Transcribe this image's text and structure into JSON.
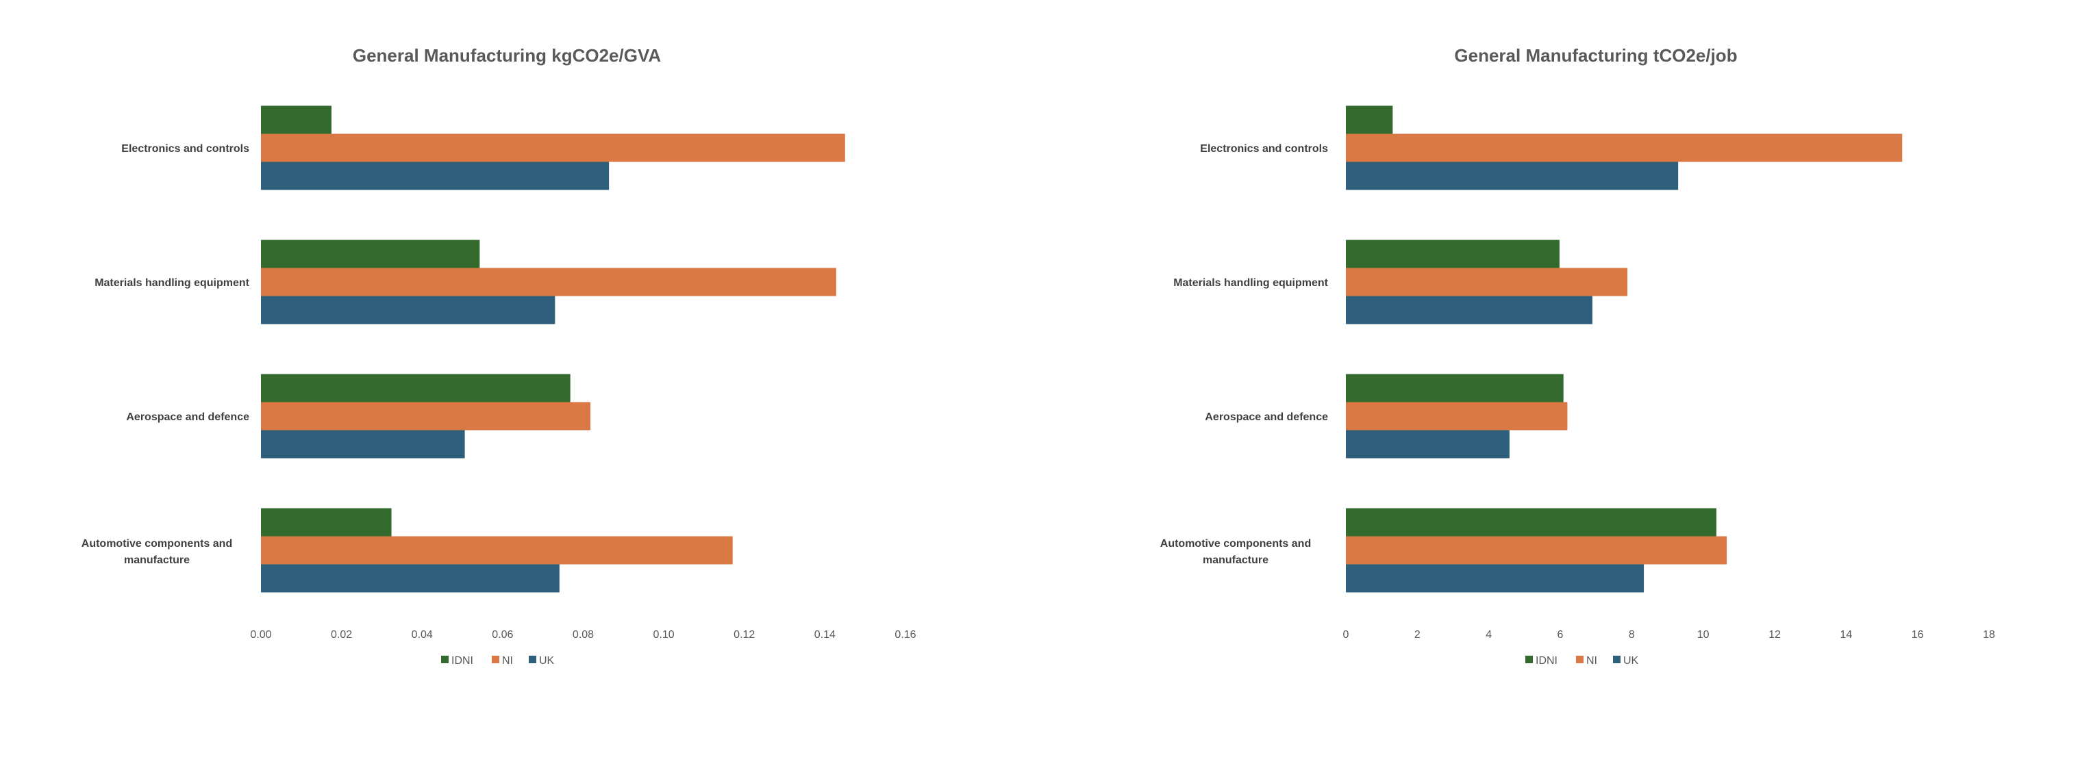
{
  "chart_data": [
    {
      "type": "bar",
      "orientation": "horizontal",
      "title": "General Manufacturing kgCO2e/GVA",
      "categories": [
        "Electronics and controls",
        "Materials handling equipment",
        "Aerospace and defence",
        "Automotive components and manufacture"
      ],
      "series": [
        {
          "name": "IDNI",
          "color": "#336A2E",
          "values": [
            0.0175,
            0.0543,
            0.0768,
            0.0324
          ]
        },
        {
          "name": "NI",
          "color": "#D97843",
          "values": [
            0.145,
            0.1428,
            0.0818,
            0.1171
          ]
        },
        {
          "name": "UK",
          "color": "#2E607E",
          "values": [
            0.0864,
            0.073,
            0.0506,
            0.0741
          ]
        }
      ],
      "xlim": [
        0,
        0.16
      ],
      "xticks": [
        "0.00",
        "0.02",
        "0.04",
        "0.06",
        "0.08",
        "0.10",
        "0.12",
        "0.14",
        "0.16"
      ],
      "grid": false,
      "legend": "bottom"
    },
    {
      "type": "bar",
      "orientation": "horizontal",
      "title": "General Manufacturing tCO2e/job",
      "categories": [
        "Electronics and controls",
        "Materials handling equipment",
        "Aerospace and defence",
        "Automotive components and manufacture"
      ],
      "series": [
        {
          "name": "IDNI",
          "color": "#336A2E",
          "values": [
            1.31,
            5.98,
            6.09,
            10.37
          ]
        },
        {
          "name": "NI",
          "color": "#D97843",
          "values": [
            15.57,
            7.88,
            6.2,
            10.66
          ]
        },
        {
          "name": "UK",
          "color": "#2E607E",
          "values": [
            9.3,
            6.9,
            4.58,
            8.34
          ]
        }
      ],
      "xlim": [
        0,
        18
      ],
      "xticks": [
        "0",
        "2",
        "4",
        "6",
        "8",
        "10",
        "12",
        "14",
        "16",
        "18"
      ],
      "grid": false,
      "legend": "bottom"
    }
  ]
}
